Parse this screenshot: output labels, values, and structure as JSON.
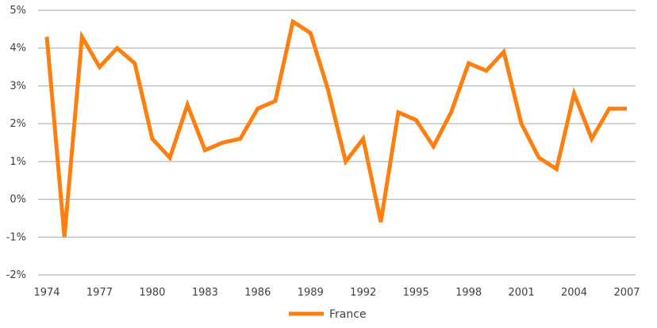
{
  "chart_data": {
    "type": "line",
    "title": "",
    "xlabel": "",
    "ylabel": "",
    "x": [
      1974,
      1975,
      1976,
      1977,
      1978,
      1979,
      1980,
      1981,
      1982,
      1983,
      1984,
      1985,
      1986,
      1987,
      1988,
      1989,
      1990,
      1991,
      1992,
      1993,
      1994,
      1995,
      1996,
      1997,
      1998,
      1999,
      2000,
      2001,
      2002,
      2003,
      2004,
      2005,
      2006,
      2007
    ],
    "series": [
      {
        "name": "France",
        "values": [
          4.3,
          -1.0,
          4.3,
          3.5,
          4.0,
          3.6,
          1.6,
          1.1,
          2.5,
          1.3,
          1.5,
          1.6,
          2.4,
          2.6,
          4.7,
          4.4,
          2.9,
          1.0,
          1.6,
          -0.6,
          2.3,
          2.1,
          1.4,
          2.3,
          3.6,
          3.4,
          3.9,
          2.0,
          1.1,
          0.8,
          2.8,
          1.6,
          2.4,
          2.4
        ]
      }
    ],
    "ylim": [
      -2,
      5
    ],
    "xlim": [
      1974,
      2007
    ],
    "x_tick_labels": [
      "1974",
      "1977",
      "1980",
      "1983",
      "1986",
      "1989",
      "1992",
      "1995",
      "1998",
      "2001",
      "2004",
      "2007"
    ],
    "y_tick_labels": [
      "-2%",
      "-1%",
      "0%",
      "1%",
      "2%",
      "3%",
      "4%",
      "5%"
    ],
    "grid": true,
    "legend_position": "bottom-center",
    "colors": {
      "series": "#ff7f0e",
      "grid": "#a6a6a6",
      "text": "#404040"
    }
  }
}
